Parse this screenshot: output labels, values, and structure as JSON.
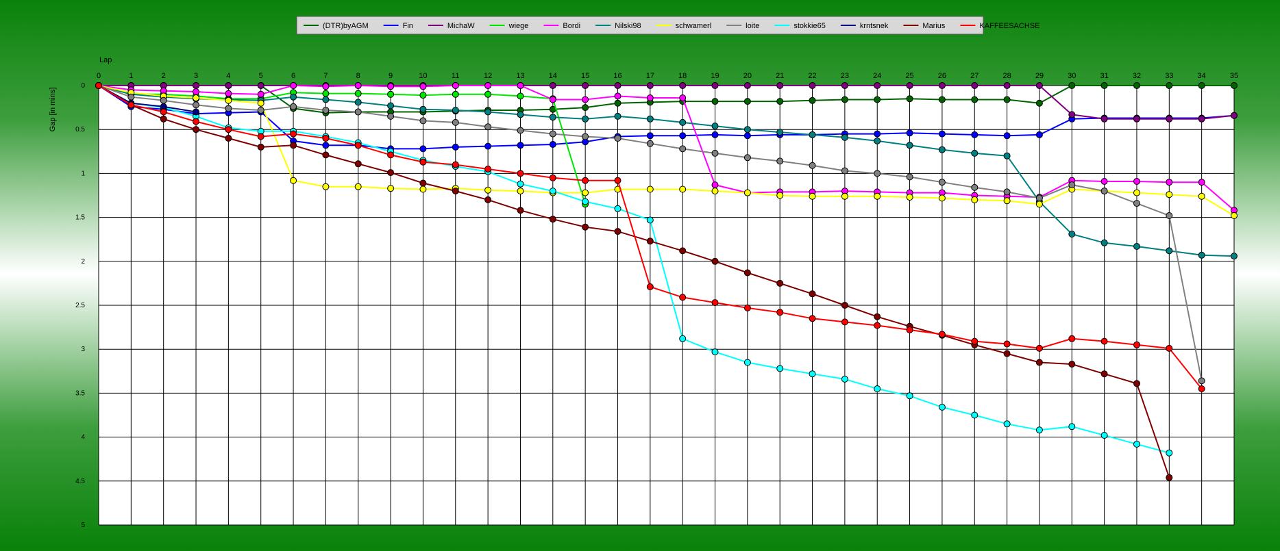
{
  "chart_data": {
    "type": "line",
    "title": "",
    "xlabel": "Lap",
    "ylabel": "Gap [in mins]",
    "xlim": [
      0,
      35
    ],
    "ylim": [
      0,
      5
    ],
    "y_inverted": true,
    "y_ticks": [
      "0",
      "0.5",
      "1",
      "1.5",
      "2",
      "2.5",
      "3",
      "3.5",
      "4",
      "4.5",
      "5"
    ],
    "x_ticks": [
      "0",
      "1",
      "2",
      "3",
      "4",
      "5",
      "6",
      "7",
      "8",
      "9",
      "10",
      "11",
      "12",
      "13",
      "14",
      "15",
      "16",
      "17",
      "18",
      "19",
      "20",
      "21",
      "22",
      "23",
      "24",
      "25",
      "26",
      "27",
      "28",
      "29",
      "30",
      "31",
      "32",
      "33",
      "34",
      "35"
    ],
    "grid": true,
    "legend_position": "top-center",
    "series": [
      {
        "name": "(DTR)byAGM",
        "color": "#006400",
        "values": [
          0,
          0,
          0,
          0,
          0,
          0,
          0.26,
          0.31,
          0.3,
          0.3,
          0.3,
          0.29,
          0.28,
          0.28,
          0.27,
          0.25,
          0.2,
          0.19,
          0.18,
          0.18,
          0.18,
          0.18,
          0.17,
          0.16,
          0.16,
          0.15,
          0.16,
          0.16,
          0.16,
          0.2,
          0,
          0,
          0,
          0,
          0,
          0
        ]
      },
      {
        "name": "Fin",
        "color": "#0000ff",
        "values": [
          0,
          0.24,
          0.27,
          0.32,
          0.31,
          0.3,
          0.63,
          0.68,
          0.68,
          0.72,
          0.72,
          0.7,
          0.69,
          0.68,
          0.67,
          0.64,
          0.58,
          0.57,
          0.57,
          0.56,
          0.57,
          0.56,
          0.56,
          0.55,
          0.55,
          0.54,
          0.55,
          0.56,
          0.57,
          0.56,
          0.38,
          0.37,
          0.37,
          0.37,
          0.37,
          0.34
        ]
      },
      {
        "name": "MichaW",
        "color": "#800080",
        "values": [
          0,
          0,
          0,
          0,
          0,
          0,
          0,
          0,
          0,
          0,
          0,
          0,
          0,
          0,
          0,
          0,
          0,
          0,
          0,
          0,
          0,
          0,
          0,
          0,
          0,
          0,
          0,
          0,
          0,
          0,
          0.33,
          0.38,
          0.38,
          0.38,
          0.38,
          0.34
        ]
      },
      {
        "name": "wiege",
        "color": "#00e600",
        "values": [
          0,
          0.1,
          0.1,
          0.12,
          0.15,
          0.15,
          0.08,
          0.09,
          0.09,
          0.1,
          0.11,
          0.1,
          0.1,
          0.12,
          0.15,
          1.35,
          null,
          null,
          null,
          null,
          null,
          null,
          null,
          null,
          null,
          null,
          null,
          null,
          null,
          null,
          null,
          null,
          null,
          null,
          null,
          null
        ]
      },
      {
        "name": "Bordi",
        "color": "#ff00ff",
        "values": [
          0,
          0.05,
          0.06,
          0.07,
          0.09,
          0.1,
          0,
          0.01,
          0,
          0.01,
          0.01,
          0,
          0,
          0,
          0.16,
          0.16,
          0.12,
          0.14,
          0.14,
          1.13,
          1.22,
          1.21,
          1.21,
          1.2,
          1.21,
          1.22,
          1.22,
          1.25,
          1.26,
          1.27,
          1.08,
          1.09,
          1.09,
          1.1,
          1.1,
          1.42
        ]
      },
      {
        "name": "Nilski98",
        "color": "#008080",
        "values": [
          0,
          0.1,
          0.13,
          0.15,
          0.16,
          0.17,
          0.13,
          0.16,
          0.19,
          0.23,
          0.27,
          0.28,
          0.3,
          0.33,
          0.36,
          0.38,
          0.35,
          0.38,
          0.42,
          0.46,
          0.5,
          0.53,
          0.56,
          0.59,
          0.63,
          0.68,
          0.73,
          0.77,
          0.8,
          1.32,
          1.69,
          1.79,
          1.83,
          1.88,
          1.93,
          1.94
        ]
      },
      {
        "name": "schwamerl",
        "color": "#ffff00",
        "values": [
          0,
          0.08,
          0.12,
          0.14,
          0.17,
          0.2,
          1.08,
          1.15,
          1.15,
          1.17,
          1.18,
          1.17,
          1.19,
          1.2,
          1.22,
          1.22,
          1.18,
          1.18,
          1.18,
          1.2,
          1.22,
          1.25,
          1.26,
          1.26,
          1.26,
          1.27,
          1.28,
          1.3,
          1.31,
          1.35,
          1.18,
          1.2,
          1.22,
          1.24,
          1.26,
          1.48
        ]
      },
      {
        "name": "loite",
        "color": "#808080",
        "values": [
          0,
          0.13,
          0.17,
          0.22,
          0.26,
          0.28,
          0.24,
          0.28,
          0.3,
          0.35,
          0.4,
          0.42,
          0.47,
          0.51,
          0.55,
          0.58,
          0.6,
          0.66,
          0.72,
          0.77,
          0.82,
          0.86,
          0.91,
          0.97,
          1.0,
          1.04,
          1.1,
          1.16,
          1.21,
          1.28,
          1.13,
          1.2,
          1.34,
          1.48,
          3.36,
          null
        ]
      },
      {
        "name": "stokkie65",
        "color": "#00ffff",
        "values": [
          0,
          0.2,
          0.25,
          0.35,
          0.48,
          0.52,
          0.52,
          0.58,
          0.65,
          0.75,
          0.85,
          0.92,
          0.98,
          1.12,
          1.2,
          1.32,
          1.4,
          1.53,
          2.88,
          3.03,
          3.15,
          3.22,
          3.28,
          3.34,
          3.45,
          3.53,
          3.66,
          3.75,
          3.85,
          3.92,
          3.88,
          3.98,
          4.08,
          4.18,
          null,
          null
        ]
      },
      {
        "name": "krntsnek",
        "color": "#000080",
        "values": [
          0,
          0.2,
          0.24,
          0.3,
          null,
          null,
          null,
          null,
          null,
          null,
          null,
          null,
          null,
          null,
          null,
          null,
          null,
          null,
          null,
          null,
          null,
          null,
          null,
          null,
          null,
          null,
          null,
          null,
          null,
          null,
          null,
          null,
          null,
          null,
          null,
          null
        ]
      },
      {
        "name": "Marius",
        "color": "#800000",
        "values": [
          0,
          0.22,
          0.38,
          0.5,
          0.6,
          0.7,
          0.68,
          0.79,
          0.89,
          0.99,
          1.11,
          1.2,
          1.3,
          1.42,
          1.52,
          1.61,
          1.66,
          1.77,
          1.88,
          2.0,
          2.13,
          2.25,
          2.37,
          2.5,
          2.63,
          2.74,
          2.84,
          2.95,
          3.05,
          3.15,
          3.17,
          3.28,
          3.39,
          4.46,
          null,
          null
        ]
      },
      {
        "name": "KAFFEESACHSE",
        "color": "#ff0000",
        "values": [
          0,
          0.22,
          0.3,
          0.41,
          0.5,
          0.58,
          0.55,
          0.6,
          0.68,
          0.79,
          0.87,
          0.9,
          0.95,
          1.0,
          1.05,
          1.08,
          1.08,
          2.29,
          2.41,
          2.47,
          2.53,
          2.58,
          2.65,
          2.69,
          2.73,
          2.78,
          2.83,
          2.91,
          2.94,
          2.99,
          2.88,
          2.91,
          2.95,
          2.99,
          3.45,
          null
        ]
      }
    ]
  }
}
